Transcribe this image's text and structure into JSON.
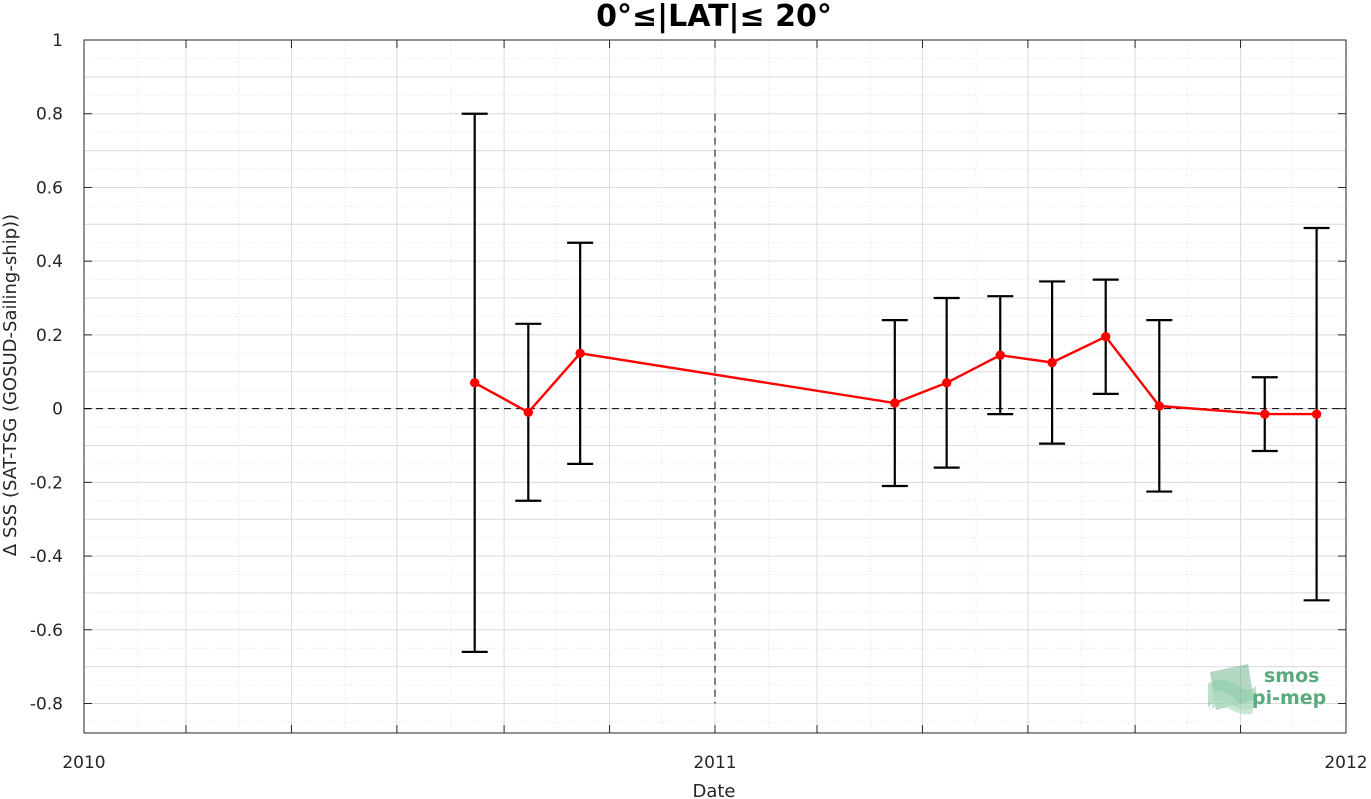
{
  "chart_data": {
    "type": "line",
    "title": "0°≤|LAT|≤ 20°",
    "xlabel": "Date",
    "ylabel": "Δ SSS (SAT-TSG (GOSUD-Sailing-ship))",
    "xlim": [
      "2010-01-01",
      "2012-01-01"
    ],
    "ylim": [
      -0.88,
      1.0
    ],
    "x_ticks": [
      "2010",
      "2011",
      "2012"
    ],
    "y_ticks": [
      "1",
      "0.8",
      "0.6",
      "0.4",
      "0.2",
      "0",
      "-0.2",
      "-0.4",
      "-0.6",
      "-0.8"
    ],
    "grid": true,
    "reference_line_y": 0,
    "reference_line_x": "2011-01-01",
    "series": [
      {
        "color": "#ff0000",
        "error_bar_color": "#000000",
        "points": [
          {
            "x": "2010-08-15",
            "y": 0.07,
            "low": -0.66,
            "high": 0.8
          },
          {
            "x": "2010-09-15",
            "y": -0.01,
            "low": -0.25,
            "high": 0.23
          },
          {
            "x": "2010-10-15",
            "y": 0.15,
            "low": -0.15,
            "high": 0.45
          },
          {
            "x": "2011-04-15",
            "y": 0.015,
            "low": -0.21,
            "high": 0.24
          },
          {
            "x": "2011-05-15",
            "y": 0.07,
            "low": -0.16,
            "high": 0.3
          },
          {
            "x": "2011-06-15",
            "y": 0.145,
            "low": -0.015,
            "high": 0.305
          },
          {
            "x": "2011-07-15",
            "y": 0.125,
            "low": -0.095,
            "high": 0.345
          },
          {
            "x": "2011-08-15",
            "y": 0.195,
            "low": 0.04,
            "high": 0.35
          },
          {
            "x": "2011-09-15",
            "y": 0.007,
            "low": -0.225,
            "high": 0.24
          },
          {
            "x": "2011-11-15",
            "y": -0.015,
            "low": -0.115,
            "high": 0.085
          },
          {
            "x": "2011-12-15",
            "y": -0.015,
            "low": -0.52,
            "high": 0.49
          }
        ]
      }
    ]
  },
  "watermark": {
    "line1": "smos",
    "line2": "pi-mep",
    "color": "#5aaa7e"
  }
}
